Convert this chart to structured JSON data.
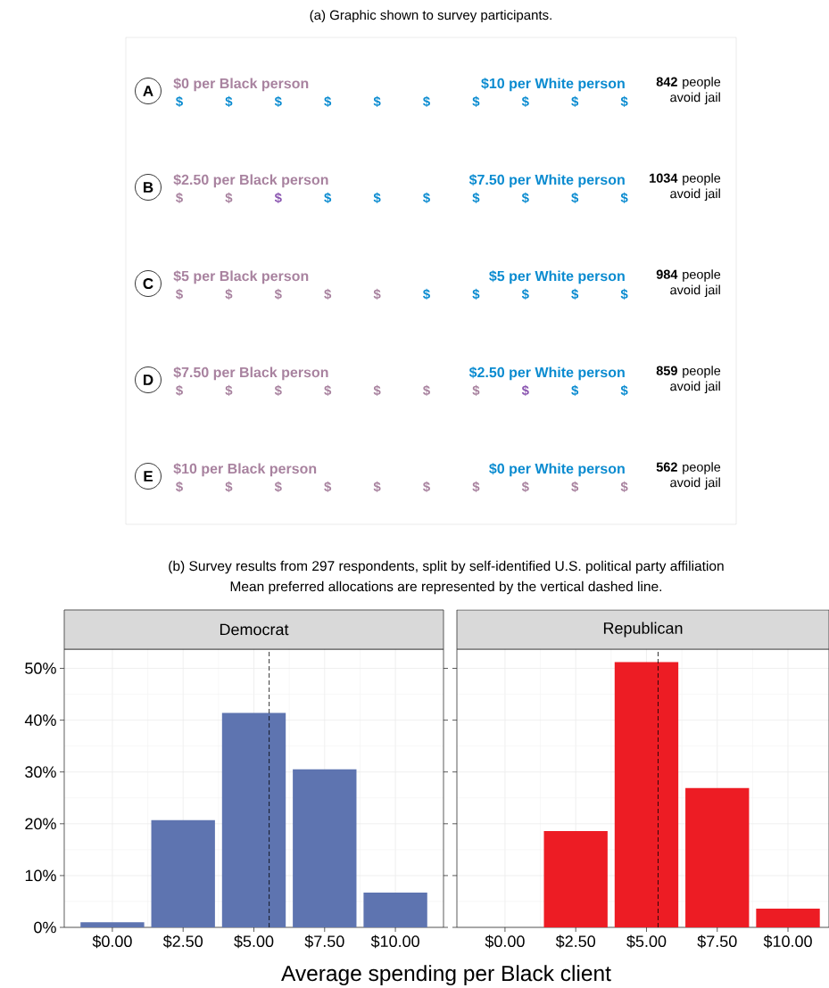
{
  "chart_data": [
    {
      "type": "other",
      "title": "(a) Graphic shown to survey participants.",
      "categories": [
        "A",
        "B",
        "C",
        "D",
        "E"
      ],
      "series": [
        {
          "color": "#a8829f",
          "values": [
            0,
            2.5,
            5,
            7.5,
            10
          ],
          "value_labels": [
            "$0 per Black person",
            "$2.50 per Black person",
            "$5 per Black person",
            "$7.50 per Black person",
            "$10 per Black person"
          ]
        },
        {
          "color": "#0a8bd0",
          "values": [
            10,
            7.5,
            5,
            2.5,
            0
          ],
          "value_labels": [
            "$10 per White person",
            "$7.50 per White person",
            "$5 per White person",
            "$2.50 per White person",
            "$0 per White person"
          ]
        }
      ],
      "annotations": [
        "**842** people avoid jail",
        "**1034** people avoid jail",
        "**984** people avoid jail",
        "**859** people avoid jail",
        "**562** people avoid jail",
        "$"
      ]
    },
    {
      "type": "bar",
      "title": "Democrat",
      "annotations": [
        "(b) Survey results from 297 respondents, split by self-identified U.S. political party affiliation",
        "Mean preferred allocations are represented by the vertical dashed line."
      ],
      "xlabel": "Average spending per Black client",
      "x": [
        0,
        2.5,
        5,
        7.5,
        10
      ],
      "series": [
        {
          "color": "#5e74b0",
          "values": [
            1.0,
            20.7,
            41.4,
            30.5,
            6.7
          ]
        }
      ],
      "xlim": [
        -1.7,
        11.7
      ],
      "ylim": [
        0,
        53.7
      ],
      "xticks": [
        {
          "value": 0,
          "label": "$0.00"
        },
        {
          "value": 2.5,
          "label": "$2.50"
        },
        {
          "value": 5,
          "label": "$5.00"
        },
        {
          "value": 7.5,
          "label": "$7.50"
        },
        {
          "value": 10,
          "label": "$10.00"
        }
      ],
      "yticks": [
        {
          "value": 0,
          "label": "0%"
        },
        {
          "value": 10,
          "label": "10%"
        },
        {
          "value": 20,
          "label": "20%"
        },
        {
          "value": 30,
          "label": "30%"
        },
        {
          "value": 40,
          "label": "40%"
        },
        {
          "value": 50,
          "label": "50%"
        }
      ],
      "ref_lines": [
        {
          "axis": "x",
          "value": 5.54,
          "line_style": "dashed",
          "color": "#000000"
        }
      ],
      "grid": true
    },
    {
      "type": "bar",
      "title": "Republican",
      "x": [
        0,
        2.5,
        5,
        7.5,
        10
      ],
      "series": [
        {
          "color": "#ed1c24",
          "values": [
            0,
            18.6,
            51.2,
            26.9,
            3.6
          ]
        }
      ],
      "xlim": [
        -1.7,
        11.45
      ],
      "ylim": [
        0,
        53.7
      ],
      "xticks": [
        {
          "value": 0,
          "label": "$0.00"
        },
        {
          "value": 2.5,
          "label": "$2.50"
        },
        {
          "value": 5,
          "label": "$5.00"
        },
        {
          "value": 7.5,
          "label": "$7.50"
        },
        {
          "value": 10,
          "label": "$10.00"
        }
      ],
      "yticks": [
        {
          "value": 0,
          "label": null
        },
        {
          "value": 10,
          "label": null
        },
        {
          "value": 20,
          "label": null
        },
        {
          "value": 30,
          "label": null
        },
        {
          "value": 40,
          "label": null
        },
        {
          "value": 50,
          "label": null
        }
      ],
      "ref_lines": [
        {
          "axis": "x",
          "value": 5.41,
          "line_style": "dashed",
          "color": "#000000"
        }
      ],
      "tick_labels": "x",
      "grid": true
    }
  ]
}
